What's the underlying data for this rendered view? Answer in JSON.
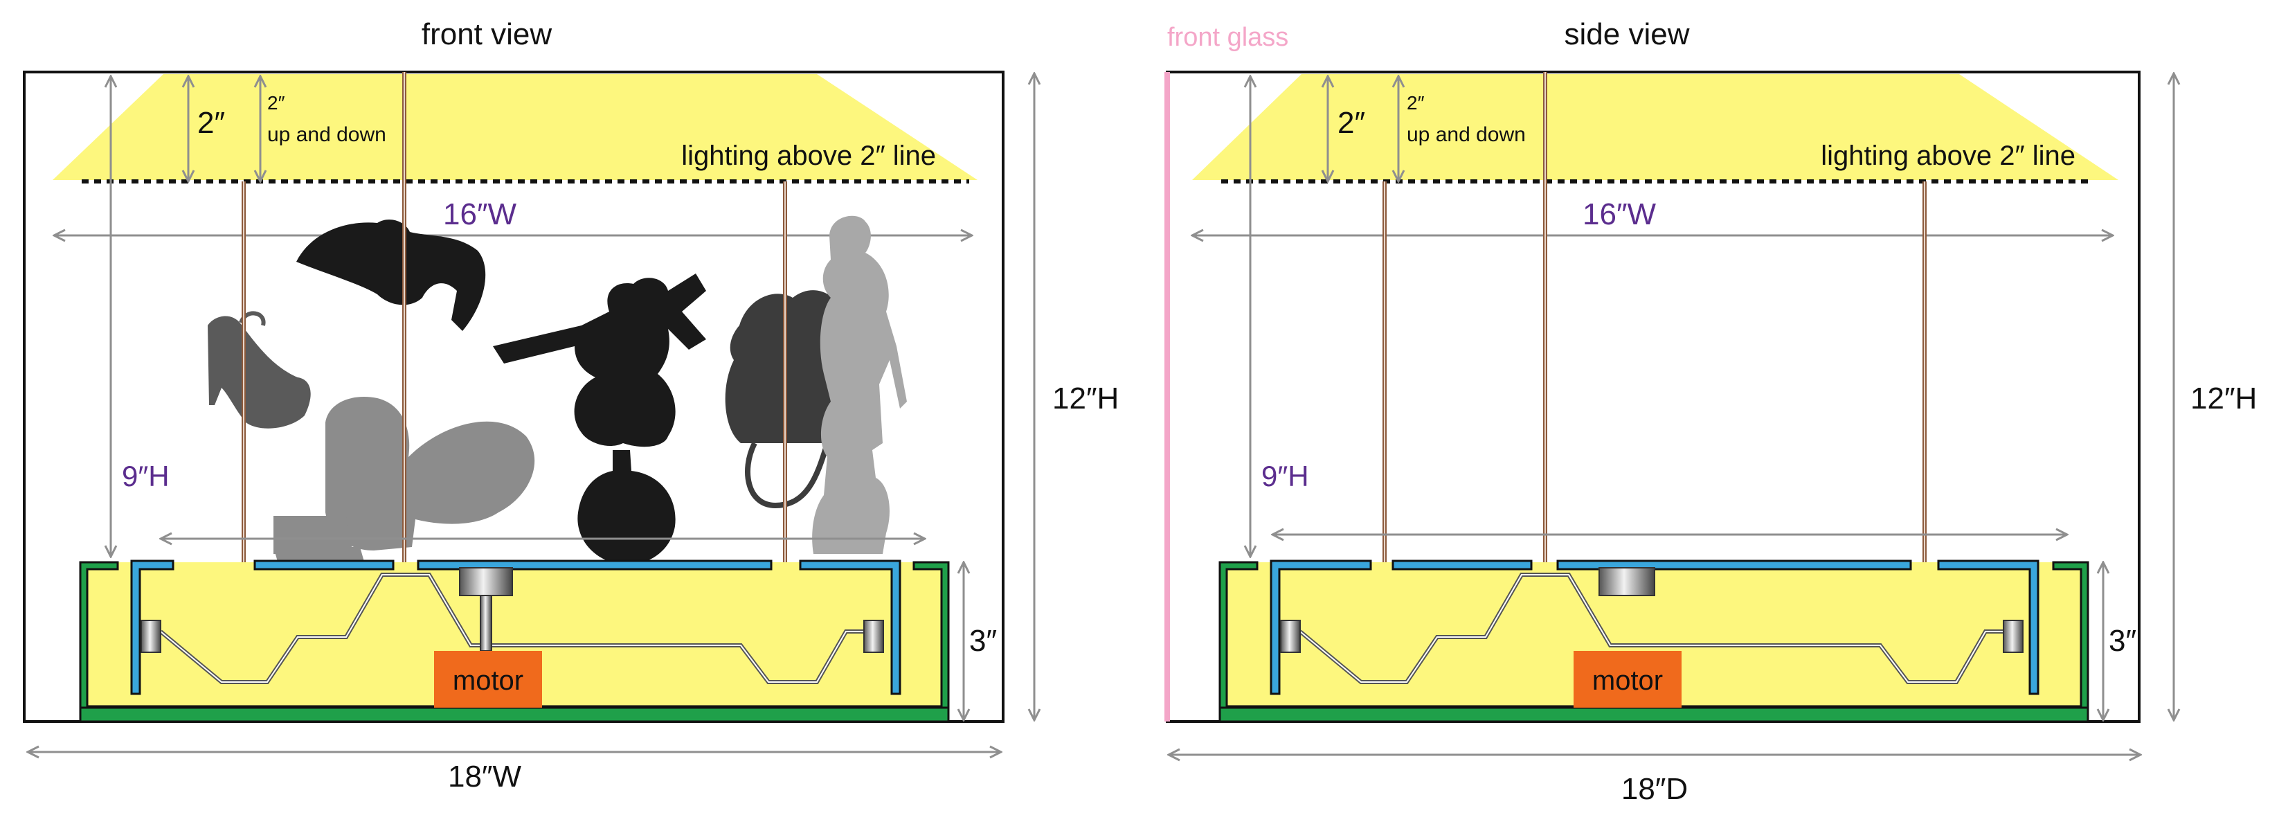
{
  "front": {
    "title": "front view",
    "top_gap": "2″",
    "travel_line1": "2″",
    "travel_line2": "up and down",
    "lighting_note": "lighting above 2″ line",
    "width_inner": "16″W",
    "height_inner": "9″H",
    "height_total": "12″H",
    "base_height": "3″",
    "width_total": "18″W",
    "motor_label": "motor"
  },
  "side": {
    "glass_label": "front glass",
    "title": "side view",
    "top_gap": "2″",
    "travel_line1": "2″",
    "travel_line2": "up and down",
    "lighting_note": "lighting above 2″ line",
    "width_inner": "16″W",
    "height_inner": "9″H",
    "height_total": "12″H",
    "base_height": "3″",
    "depth_total": "18″D",
    "motor_label": "motor"
  },
  "colors": {
    "lighting_yellow": "#fdf77e",
    "base_green": "#1fa04a",
    "track_blue": "#3aa6dc",
    "motor_orange": "#f06a1c",
    "dimension_purple": "#5b2d8e",
    "glass_pink": "#f4a6c8",
    "rod_brown": "#8c5a3c",
    "silhouette_gray": "#8c8c8c",
    "silhouette_black": "#1a1a1a"
  }
}
